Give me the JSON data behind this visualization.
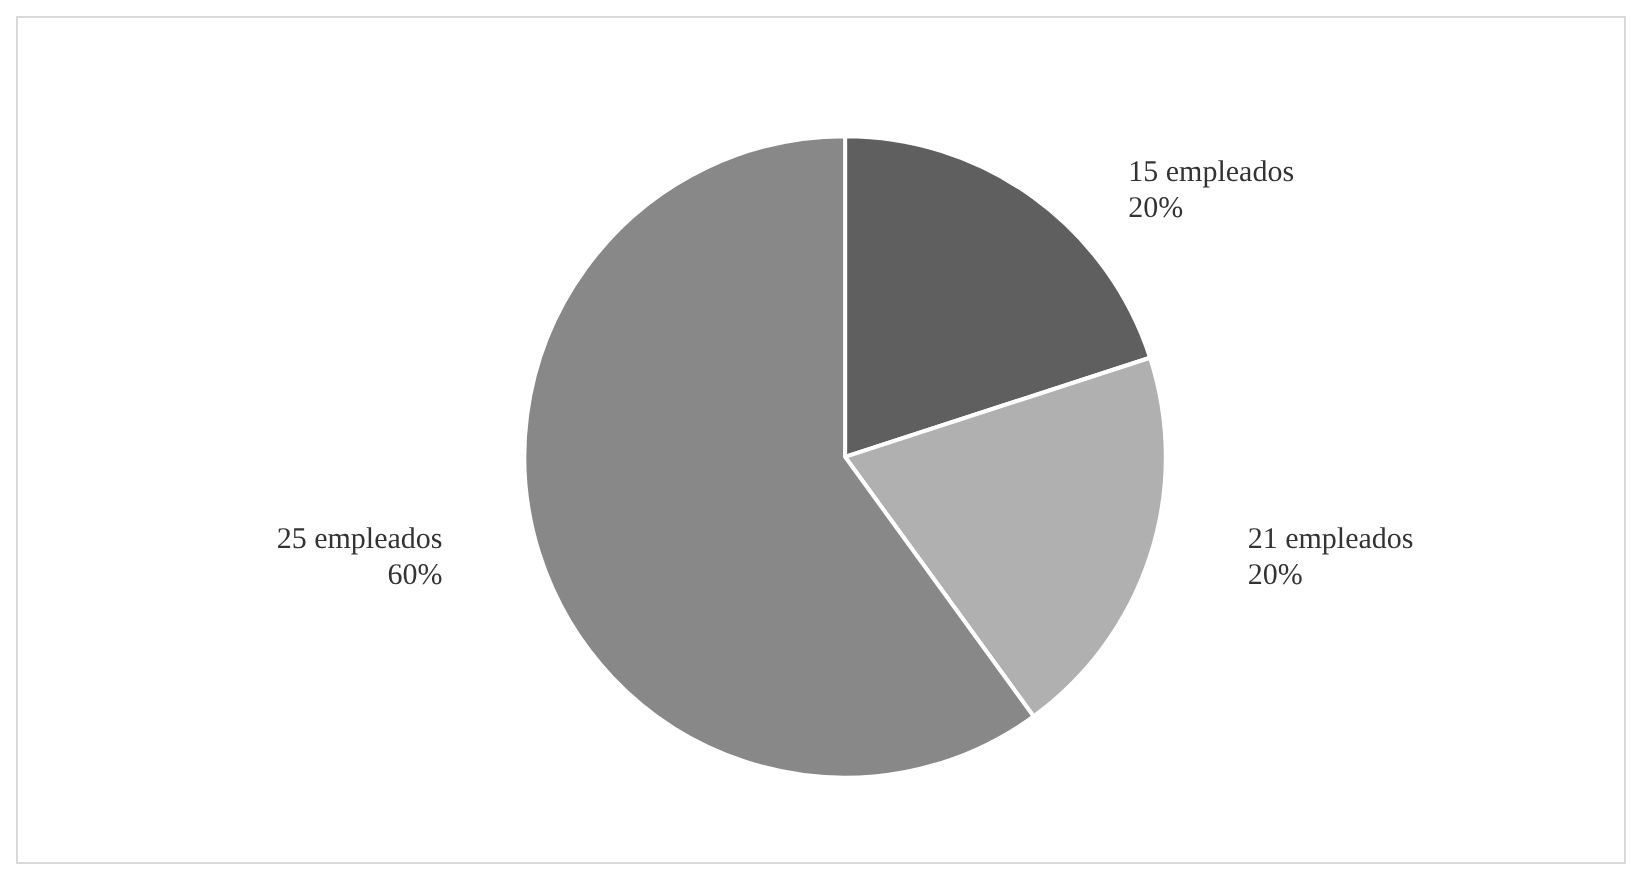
{
  "chart_data": {
    "type": "pie",
    "categories": [
      "15 empleados",
      "21 empleados",
      "25 empleados"
    ],
    "values": [
      20,
      20,
      60
    ],
    "colors": [
      "#5f5f5f",
      "#b0b0b0",
      "#888888"
    ],
    "value_labels": [
      "20%",
      "20%",
      "60%"
    ],
    "legend": false
  }
}
